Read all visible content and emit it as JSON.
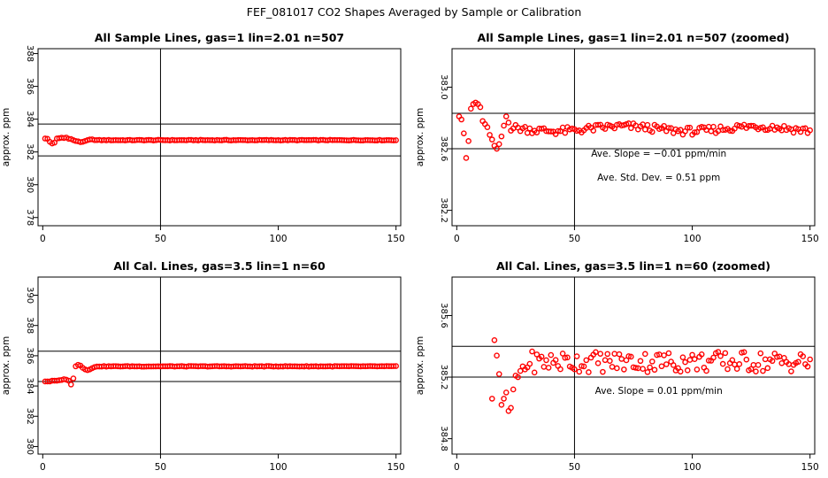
{
  "figure_title": "FEF_081017  CO2 Shapes Averaged by Sample or Calibration",
  "colors": {
    "points": "#ff0000",
    "axes": "#000000",
    "background": "#ffffff"
  },
  "chart_data": [
    {
      "type": "scatter",
      "title": "All Sample Lines, gas=1 lin=2.01 n=507",
      "xlabel": "",
      "ylabel": "approx. ppm",
      "xlim": [
        -2,
        152
      ],
      "ylim": [
        377.5,
        388.3
      ],
      "xticks": [
        0,
        50,
        100,
        150
      ],
      "yticks": [
        378,
        380,
        382,
        384,
        386,
        388
      ],
      "hlines": [
        381.76,
        383.7
      ],
      "vline": 50,
      "annotations": [],
      "base_level": 382.72,
      "offsets": [
        0.1,
        0.08,
        -0.1,
        -0.2,
        -0.15,
        0.1,
        0.12,
        0.15,
        0.13,
        0.16,
        0.08,
        0.07,
        0.0,
        -0.05,
        -0.07,
        -0.12,
        -0.1,
        -0.05,
        0.0,
        0.04,
        0.05,
        0.0
      ]
    },
    {
      "type": "scatter",
      "title": "All Sample Lines, gas=1 lin=2.01 n=507 (zoomed)",
      "xlabel": "",
      "ylabel": "approx. ppm",
      "xlim": [
        -2,
        152
      ],
      "ylim": [
        382.1,
        383.25
      ],
      "xticks": [
        0,
        50,
        100,
        150
      ],
      "yticks": [
        382.2,
        382.6,
        383.0
      ],
      "hlines": [
        382.6,
        382.83
      ],
      "vline": 50,
      "annotations": [
        "Ave. Slope = −0.01  ppm/min",
        "Ave. Std. Dev. = 0.51  ppm"
      ],
      "base_level": 382.73,
      "offsets": [
        0.08,
        0.06,
        -0.03,
        -0.19,
        -0.08,
        0.13,
        0.16,
        0.17,
        0.16,
        0.14,
        0.05,
        0.03,
        0.01,
        -0.04,
        -0.07,
        -0.11,
        -0.13,
        -0.1,
        -0.05,
        0.02,
        0.08,
        0.04
      ]
    },
    {
      "type": "scatter",
      "title": "All Cal. Lines, gas=3.5 lin=1 n=60",
      "xlabel": "",
      "ylabel": "approx. ppm",
      "xlim": [
        -2,
        152
      ],
      "ylim": [
        379.5,
        391.2
      ],
      "xticks": [
        0,
        50,
        100,
        150
      ],
      "yticks": [
        380,
        382,
        384,
        386,
        388,
        390
      ],
      "hlines": [
        384.3,
        386.3
      ],
      "vline": 50,
      "annotations": [],
      "base_level": 385.3,
      "offsets": [
        -1.0,
        -1.0,
        -1.0,
        -0.95,
        -0.95,
        -0.95,
        -0.92,
        -0.9,
        -0.85,
        -0.88,
        -0.95,
        -1.2,
        -0.8,
        0.0,
        0.1,
        0.05,
        -0.1,
        -0.2,
        -0.25,
        -0.2,
        -0.12,
        -0.05
      ]
    },
    {
      "type": "scatter",
      "title": "All Cal. Lines, gas=3.5 lin=1 n=60 (zoomed)",
      "xlabel": "",
      "ylabel": "approx. ppm",
      "xlim": [
        -2,
        152
      ],
      "ylim": [
        384.7,
        385.85
      ],
      "xticks": [
        0,
        50,
        100,
        150
      ],
      "yticks": [
        384.8,
        385.2,
        385.6
      ],
      "hlines": [
        385.2,
        385.4
      ],
      "vline": 50,
      "annotations": [
        "Ave. Slope =  0.01  ppm/min"
      ],
      "base_level": 385.3,
      "offsets": [
        0,
        0,
        0,
        0,
        0,
        0,
        0,
        0,
        0,
        0,
        0,
        0,
        0,
        0,
        -0.24,
        0.14,
        0.04,
        -0.08,
        -0.28,
        -0.24,
        -0.2,
        -0.32,
        -0.3,
        -0.18,
        -0.09,
        -0.1,
        -0.06,
        -0.03,
        -0.05
      ]
    }
  ]
}
